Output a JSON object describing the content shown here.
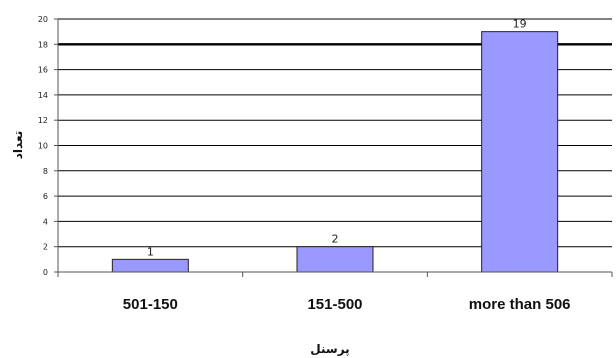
{
  "chart_data": {
    "type": "bar",
    "categories": [
      "501-150",
      "151-500",
      "more than 506"
    ],
    "values": [
      1,
      2,
      19
    ],
    "data_labels": [
      "1",
      "2",
      "19"
    ],
    "xlabel": "پرسنل",
    "ylabel": "تعداد",
    "ylim": [
      0,
      20
    ],
    "yticks": [
      "0",
      "2",
      "4",
      "6",
      "8",
      "10",
      "12",
      "14",
      "16",
      "18",
      "20"
    ],
    "grid": true,
    "legend": "none",
    "colors": {
      "bar_fill": "#9999ff",
      "bar_stroke": "#222222",
      "grid": "#000000",
      "axis": "#555555"
    }
  }
}
